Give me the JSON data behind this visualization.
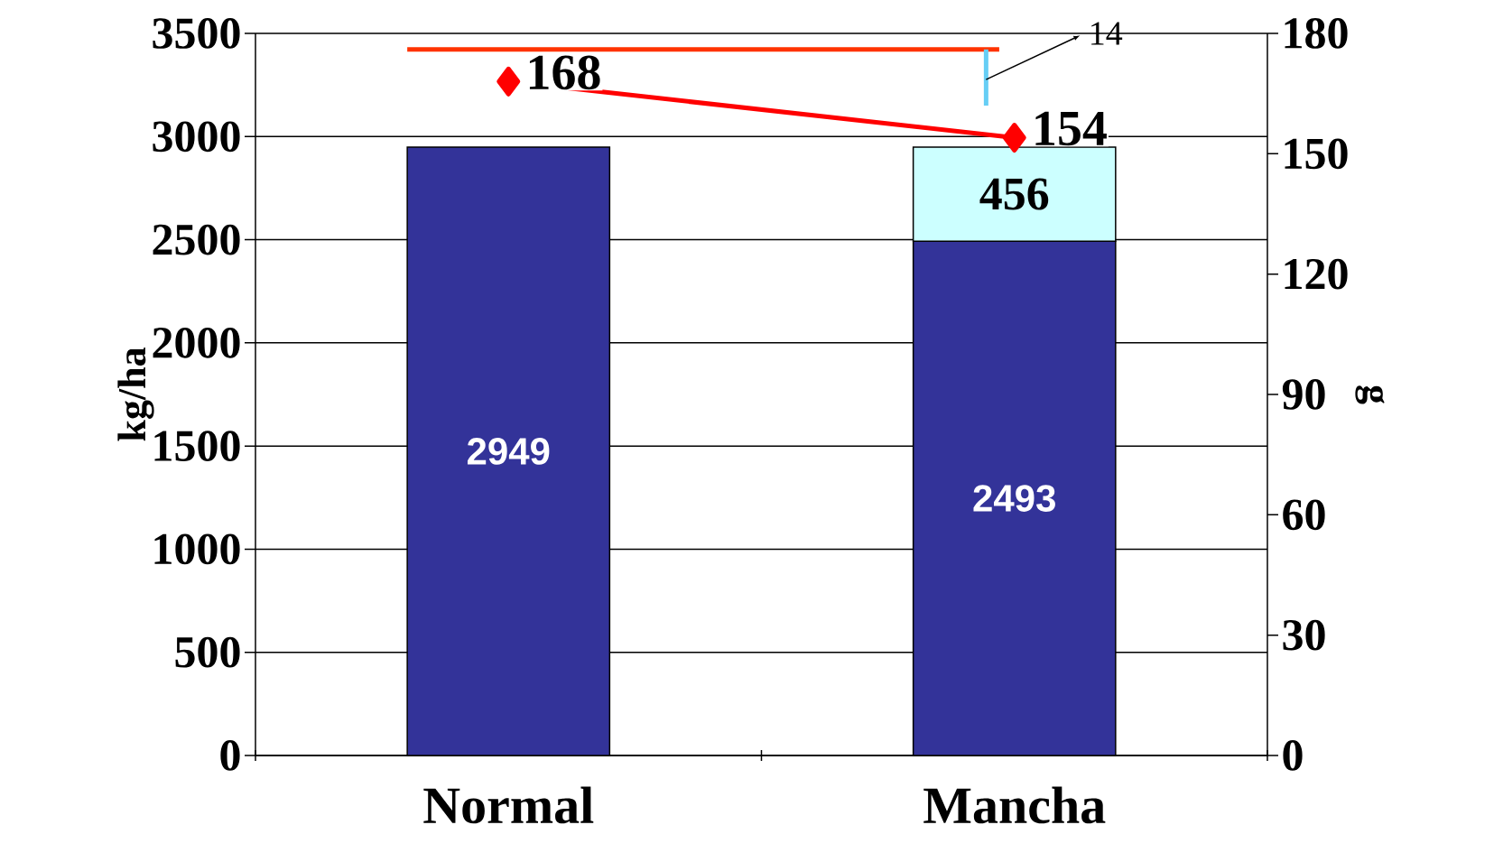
{
  "chart_data": {
    "type": "bar",
    "stacked": true,
    "categories": [
      "Normal",
      "Mancha"
    ],
    "series": [
      {
        "color": "#333399",
        "values": [
          2949,
          2493
        ]
      },
      {
        "color": "#ccffff",
        "values": [
          null,
          456
        ]
      },
      {
        "type": "line",
        "axis": "y2",
        "color": "#ff0000",
        "marker": "diamond",
        "values": [
          168,
          154
        ]
      }
    ],
    "ylabel": "kg/ha",
    "y2label": "g",
    "ylim": [
      0,
      3500
    ],
    "yticks": [
      0,
      500,
      1000,
      1500,
      2000,
      2500,
      3000,
      3500
    ],
    "y2lim": [
      0,
      180
    ],
    "y2ticks": [
      0,
      30,
      60,
      90,
      120,
      150,
      180
    ],
    "grid": "y",
    "data_labels": true,
    "ref_lines": [
      {
        "axis": "y2",
        "value": 176,
        "color": "#ff3300"
      }
    ],
    "annotations": [
      "14"
    ]
  }
}
